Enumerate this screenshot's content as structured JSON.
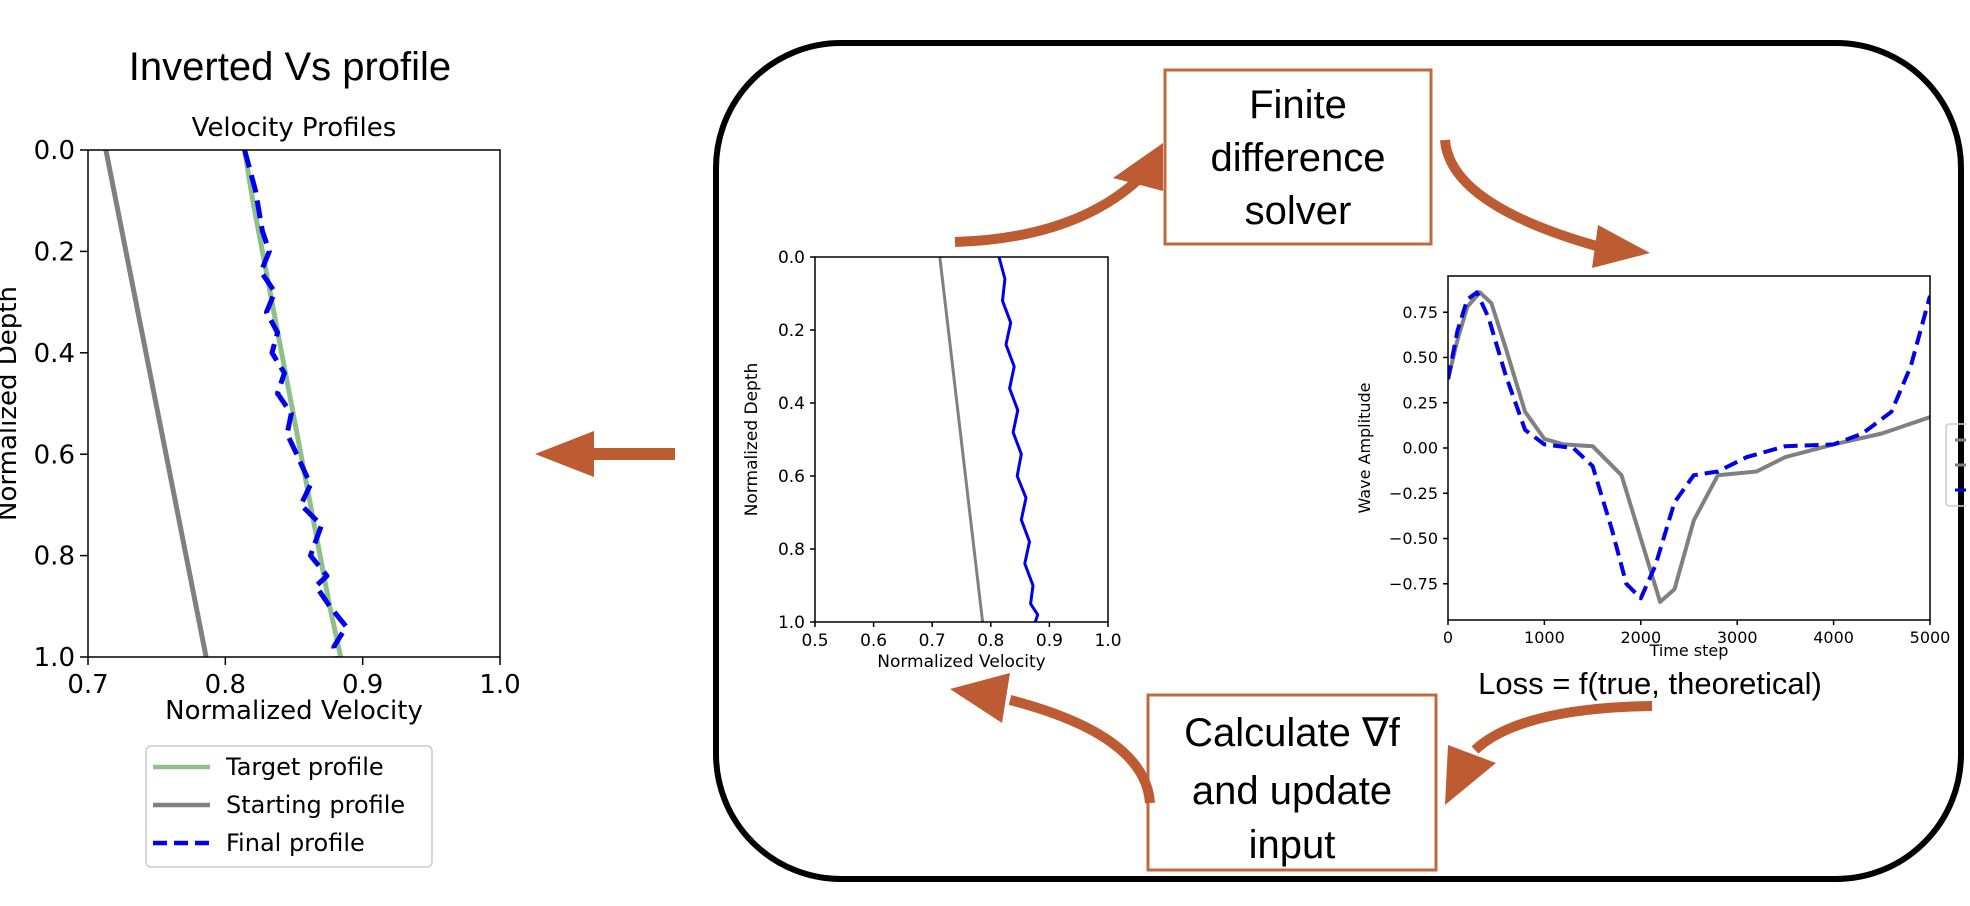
{
  "heading": "Inverted Vs profile",
  "loss_label": "Loss = f(true, theoretical)",
  "boxes": {
    "solver": [
      "Finite",
      "difference",
      "solver"
    ],
    "update": [
      "Calculate ∇f",
      "and update",
      "input"
    ]
  },
  "colors": {
    "arrow": "#bd5b33",
    "box_border": "#c0683e",
    "target": "#8fc08a",
    "starting": "#808080",
    "final": "#0000ee"
  },
  "chart_data": [
    {
      "id": "velocity-profiles-main",
      "type": "line",
      "title": "Velocity Profiles",
      "xlabel": "Normalized Velocity",
      "ylabel": "Normalized Depth",
      "xlim": [
        0.7,
        1.0
      ],
      "ylim": [
        1.0,
        0.0
      ],
      "y_inverted": true,
      "xticks": [
        "0.7",
        "0.8",
        "0.9",
        "1.0"
      ],
      "yticks": [
        "0.0",
        "0.2",
        "0.4",
        "0.6",
        "0.8",
        "1.0"
      ],
      "legend": {
        "placement": "below",
        "entries": [
          "Target profile",
          "Starting profile",
          "Final profile"
        ]
      },
      "series": [
        {
          "name": "Target profile",
          "style": "solid",
          "color": "#8fc08a",
          "points": [
            [
              0.814,
              0.0
            ],
            [
              0.82,
              0.1
            ],
            [
              0.827,
              0.2
            ],
            [
              0.834,
              0.3
            ],
            [
              0.841,
              0.4
            ],
            [
              0.848,
              0.5
            ],
            [
              0.855,
              0.6
            ],
            [
              0.862,
              0.7
            ],
            [
              0.869,
              0.8
            ],
            [
              0.876,
              0.9
            ],
            [
              0.884,
              1.0
            ]
          ]
        },
        {
          "name": "Starting profile",
          "style": "solid",
          "color": "#808080",
          "points": [
            [
              0.713,
              0.0
            ],
            [
              0.786,
              1.0
            ]
          ]
        },
        {
          "name": "Final profile",
          "style": "dashed",
          "color": "#0000ee",
          "points": [
            [
              0.814,
              0.0
            ],
            [
              0.822,
              0.08
            ],
            [
              0.827,
              0.16
            ],
            [
              0.832,
              0.2
            ],
            [
              0.826,
              0.24
            ],
            [
              0.836,
              0.28
            ],
            [
              0.83,
              0.32
            ],
            [
              0.838,
              0.36
            ],
            [
              0.834,
              0.4
            ],
            [
              0.843,
              0.44
            ],
            [
              0.838,
              0.48
            ],
            [
              0.848,
              0.52
            ],
            [
              0.845,
              0.56
            ],
            [
              0.852,
              0.6
            ],
            [
              0.862,
              0.66
            ],
            [
              0.855,
              0.7
            ],
            [
              0.87,
              0.74
            ],
            [
              0.862,
              0.8
            ],
            [
              0.874,
              0.84
            ],
            [
              0.866,
              0.86
            ],
            [
              0.876,
              0.9
            ],
            [
              0.888,
              0.94
            ],
            [
              0.879,
              0.98
            ],
            [
              0.88,
              1.0
            ]
          ]
        }
      ]
    },
    {
      "id": "velocity-profiles-inner",
      "type": "line",
      "title": "",
      "xlabel": "Normalized Velocity",
      "ylabel": "Normalized Depth",
      "xlim": [
        0.5,
        1.0
      ],
      "ylim": [
        1.0,
        0.0
      ],
      "y_inverted": true,
      "xticks": [
        "0.5",
        "0.6",
        "0.7",
        "0.8",
        "0.9",
        "1.0"
      ],
      "yticks": [
        "0.0",
        "0.2",
        "0.4",
        "0.6",
        "0.8",
        "1.0"
      ],
      "series": [
        {
          "style": "solid",
          "color": "#808080",
          "points": [
            [
              0.713,
              0.0
            ],
            [
              0.786,
              1.0
            ]
          ]
        },
        {
          "style": "solid",
          "color": "#0000ee",
          "points": [
            [
              0.814,
              0.0
            ],
            [
              0.824,
              0.06
            ],
            [
              0.82,
              0.12
            ],
            [
              0.834,
              0.18
            ],
            [
              0.826,
              0.24
            ],
            [
              0.84,
              0.3
            ],
            [
              0.832,
              0.36
            ],
            [
              0.846,
              0.42
            ],
            [
              0.838,
              0.48
            ],
            [
              0.852,
              0.54
            ],
            [
              0.845,
              0.6
            ],
            [
              0.86,
              0.66
            ],
            [
              0.852,
              0.72
            ],
            [
              0.866,
              0.78
            ],
            [
              0.858,
              0.84
            ],
            [
              0.872,
              0.9
            ],
            [
              0.868,
              0.95
            ],
            [
              0.88,
              0.98
            ],
            [
              0.876,
              1.0
            ]
          ]
        }
      ]
    },
    {
      "id": "wave-amplitude",
      "type": "line",
      "title": "",
      "xlabel": "Time step",
      "ylabel": "Wave Amplitude",
      "xlim": [
        0,
        5000
      ],
      "ylim": [
        -0.95,
        0.95
      ],
      "xticks": [
        "0",
        "1000",
        "2000",
        "3000",
        "4000",
        "5000"
      ],
      "yticks": [
        "0.75",
        "0.50",
        "0.25",
        "0.00",
        "−0.25",
        "−0.50",
        "−0.75"
      ],
      "series": [
        {
          "style": "solid",
          "color": "#808080",
          "points": [
            [
              0,
              0.38
            ],
            [
              100,
              0.6
            ],
            [
              200,
              0.78
            ],
            [
              330,
              0.86
            ],
            [
              450,
              0.8
            ],
            [
              600,
              0.55
            ],
            [
              800,
              0.2
            ],
            [
              1000,
              0.05
            ],
            [
              1200,
              0.02
            ],
            [
              1500,
              0.01
            ],
            [
              1800,
              -0.15
            ],
            [
              2000,
              -0.5
            ],
            [
              2200,
              -0.85
            ],
            [
              2350,
              -0.78
            ],
            [
              2550,
              -0.4
            ],
            [
              2800,
              -0.15
            ],
            [
              3200,
              -0.13
            ],
            [
              3500,
              -0.05
            ],
            [
              4000,
              0.02
            ],
            [
              4500,
              0.08
            ],
            [
              5000,
              0.17
            ]
          ]
        },
        {
          "style": "dashed",
          "color": "#0000ee",
          "points": [
            [
              0,
              0.38
            ],
            [
              100,
              0.65
            ],
            [
              200,
              0.82
            ],
            [
              300,
              0.86
            ],
            [
              420,
              0.72
            ],
            [
              600,
              0.4
            ],
            [
              800,
              0.1
            ],
            [
              1000,
              0.02
            ],
            [
              1300,
              0.0
            ],
            [
              1500,
              -0.1
            ],
            [
              1700,
              -0.45
            ],
            [
              1850,
              -0.75
            ],
            [
              2000,
              -0.83
            ],
            [
              2150,
              -0.65
            ],
            [
              2350,
              -0.3
            ],
            [
              2550,
              -0.15
            ],
            [
              2800,
              -0.13
            ],
            [
              3100,
              -0.05
            ],
            [
              3500,
              0.01
            ],
            [
              4000,
              0.02
            ],
            [
              4300,
              0.08
            ],
            [
              4600,
              0.2
            ],
            [
              4800,
              0.45
            ],
            [
              5000,
              0.84
            ]
          ]
        }
      ]
    }
  ]
}
